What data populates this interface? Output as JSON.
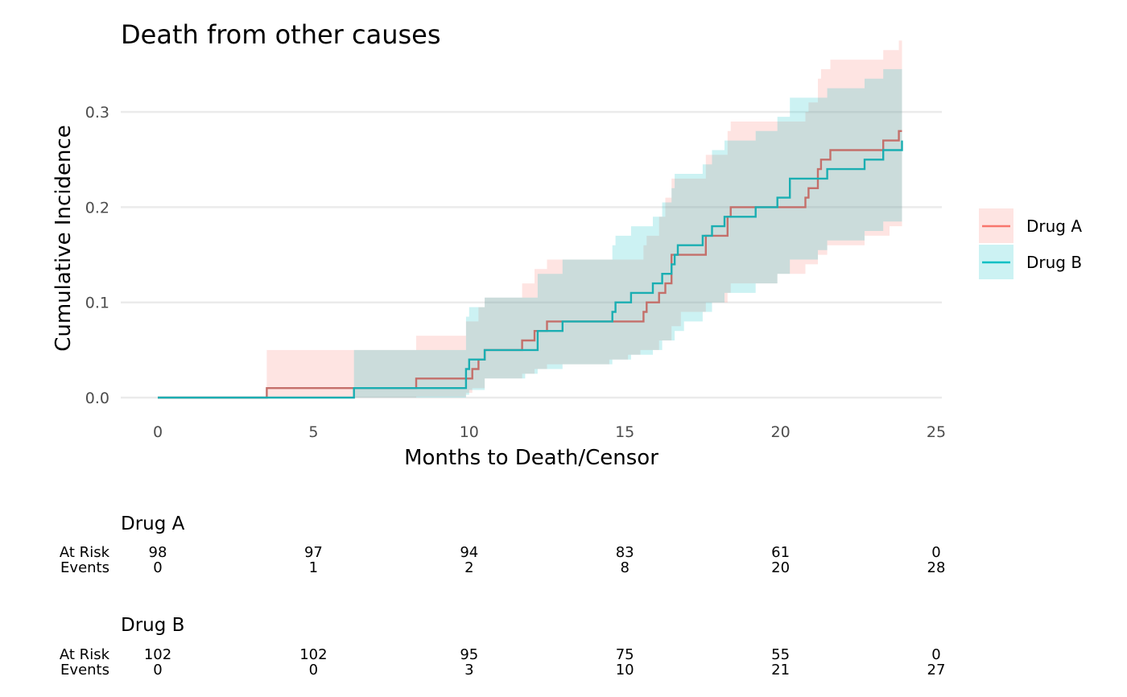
{
  "chart_data": {
    "type": "line",
    "subtype": "step-with-confidence-bands",
    "title": "Death from other causes",
    "xlabel": "Months to Death/Censor",
    "ylabel": "Cumulative Incidence",
    "xlim": [
      0,
      25
    ],
    "ylim": [
      0,
      0.35
    ],
    "x_ticks": [
      "0",
      "5",
      "10",
      "15",
      "20",
      "25"
    ],
    "y_ticks": [
      "0.0",
      "0.1",
      "0.2",
      "0.3"
    ],
    "grid": true,
    "legend_position": "right",
    "series": [
      {
        "name": "Drug A",
        "color": "#F8766D",
        "line_color": "#c46f6a",
        "steps": [
          [
            0,
            0
          ],
          [
            3.5,
            0.01
          ],
          [
            8.3,
            0.02
          ],
          [
            10.1,
            0.03
          ],
          [
            10.3,
            0.04
          ],
          [
            10.5,
            0.05
          ],
          [
            11.7,
            0.06
          ],
          [
            12.1,
            0.07
          ],
          [
            12.5,
            0.08
          ],
          [
            15.6,
            0.09
          ],
          [
            15.7,
            0.1
          ],
          [
            16.1,
            0.11
          ],
          [
            16.3,
            0.12
          ],
          [
            16.5,
            0.15
          ],
          [
            17.6,
            0.17
          ],
          [
            18.3,
            0.19
          ],
          [
            18.4,
            0.2
          ],
          [
            20.8,
            0.21
          ],
          [
            20.9,
            0.22
          ],
          [
            21.2,
            0.24
          ],
          [
            21.3,
            0.25
          ],
          [
            21.6,
            0.26
          ],
          [
            23.3,
            0.27
          ],
          [
            23.8,
            0.28
          ],
          [
            23.9,
            0.28
          ]
        ],
        "lower": [
          [
            0,
            0
          ],
          [
            8.3,
            0.001
          ],
          [
            9.9,
            0.005
          ],
          [
            10.1,
            0.01
          ],
          [
            10.5,
            0.02
          ],
          [
            11.7,
            0.025
          ],
          [
            12.1,
            0.03
          ],
          [
            12.5,
            0.035
          ],
          [
            14.5,
            0.04
          ],
          [
            15.1,
            0.045
          ],
          [
            15.5,
            0.05
          ],
          [
            16.1,
            0.06
          ],
          [
            16.5,
            0.075
          ],
          [
            16.8,
            0.09
          ],
          [
            17.6,
            0.1
          ],
          [
            18.3,
            0.11
          ],
          [
            18.4,
            0.12
          ],
          [
            19.9,
            0.13
          ],
          [
            20.8,
            0.14
          ],
          [
            21.2,
            0.15
          ],
          [
            21.5,
            0.16
          ],
          [
            22.7,
            0.17
          ],
          [
            23.5,
            0.18
          ],
          [
            23.9,
            0.18
          ]
        ],
        "upper": [
          [
            0,
            0
          ],
          [
            3.5,
            0.05
          ],
          [
            8.3,
            0.065
          ],
          [
            9.9,
            0.08
          ],
          [
            10.3,
            0.095
          ],
          [
            10.5,
            0.105
          ],
          [
            11.7,
            0.12
          ],
          [
            12.1,
            0.135
          ],
          [
            12.5,
            0.145
          ],
          [
            15.6,
            0.16
          ],
          [
            15.7,
            0.17
          ],
          [
            16.1,
            0.19
          ],
          [
            16.3,
            0.21
          ],
          [
            16.5,
            0.23
          ],
          [
            17.6,
            0.255
          ],
          [
            18.3,
            0.28
          ],
          [
            18.4,
            0.29
          ],
          [
            20.8,
            0.3
          ],
          [
            20.9,
            0.31
          ],
          [
            21.2,
            0.335
          ],
          [
            21.3,
            0.345
          ],
          [
            21.6,
            0.355
          ],
          [
            23.3,
            0.365
          ],
          [
            23.8,
            0.375
          ],
          [
            23.9,
            0.375
          ]
        ]
      },
      {
        "name": "Drug B",
        "color": "#00BFC4",
        "line_color": "#1aaeb2",
        "steps": [
          [
            0,
            0
          ],
          [
            6.3,
            0.01
          ],
          [
            9.9,
            0.03
          ],
          [
            10.0,
            0.04
          ],
          [
            10.5,
            0.05
          ],
          [
            12.2,
            0.07
          ],
          [
            13.0,
            0.08
          ],
          [
            14.6,
            0.09
          ],
          [
            14.7,
            0.1
          ],
          [
            15.2,
            0.11
          ],
          [
            15.9,
            0.12
          ],
          [
            16.2,
            0.13
          ],
          [
            16.5,
            0.14
          ],
          [
            16.6,
            0.15
          ],
          [
            16.7,
            0.16
          ],
          [
            17.5,
            0.17
          ],
          [
            17.8,
            0.18
          ],
          [
            18.2,
            0.19
          ],
          [
            19.2,
            0.2
          ],
          [
            19.9,
            0.21
          ],
          [
            20.3,
            0.23
          ],
          [
            21.5,
            0.24
          ],
          [
            22.7,
            0.25
          ],
          [
            23.3,
            0.26
          ],
          [
            23.9,
            0.27
          ]
        ],
        "lower": [
          [
            0,
            0
          ],
          [
            9.9,
            0.003
          ],
          [
            10.0,
            0.008
          ],
          [
            10.5,
            0.02
          ],
          [
            11.8,
            0.025
          ],
          [
            12.2,
            0.03
          ],
          [
            13.0,
            0.035
          ],
          [
            14.6,
            0.04
          ],
          [
            15.2,
            0.045
          ],
          [
            15.9,
            0.05
          ],
          [
            16.2,
            0.06
          ],
          [
            16.6,
            0.07
          ],
          [
            16.9,
            0.08
          ],
          [
            17.5,
            0.09
          ],
          [
            17.8,
            0.1
          ],
          [
            18.2,
            0.11
          ],
          [
            19.2,
            0.12
          ],
          [
            19.9,
            0.13
          ],
          [
            20.3,
            0.145
          ],
          [
            21.2,
            0.155
          ],
          [
            21.5,
            0.165
          ],
          [
            22.7,
            0.175
          ],
          [
            23.3,
            0.185
          ],
          [
            23.9,
            0.185
          ]
        ],
        "upper": [
          [
            0,
            0
          ],
          [
            6.3,
            0.05
          ],
          [
            9.9,
            0.085
          ],
          [
            10.0,
            0.095
          ],
          [
            10.5,
            0.105
          ],
          [
            12.2,
            0.13
          ],
          [
            13.0,
            0.145
          ],
          [
            14.6,
            0.16
          ],
          [
            14.7,
            0.17
          ],
          [
            15.2,
            0.18
          ],
          [
            15.9,
            0.19
          ],
          [
            16.2,
            0.205
          ],
          [
            16.5,
            0.22
          ],
          [
            16.6,
            0.235
          ],
          [
            17.5,
            0.245
          ],
          [
            17.8,
            0.26
          ],
          [
            18.2,
            0.27
          ],
          [
            19.2,
            0.28
          ],
          [
            19.9,
            0.295
          ],
          [
            20.3,
            0.315
          ],
          [
            21.5,
            0.325
          ],
          [
            22.7,
            0.335
          ],
          [
            23.3,
            0.345
          ],
          [
            23.9,
            0.355
          ]
        ]
      }
    ]
  },
  "risk_table": {
    "row_labels": [
      "At Risk",
      "Events"
    ],
    "times": [
      0,
      5,
      10,
      15,
      20,
      25
    ],
    "groups": [
      {
        "name": "Drug A",
        "at_risk": [
          "98",
          "97",
          "94",
          "83",
          "61",
          "0"
        ],
        "events": [
          "0",
          "1",
          "2",
          "8",
          "20",
          "28"
        ]
      },
      {
        "name": "Drug B",
        "at_risk": [
          "102",
          "102",
          "95",
          "75",
          "55",
          "0"
        ],
        "events": [
          "0",
          "0",
          "3",
          "10",
          "21",
          "27"
        ]
      }
    ]
  }
}
